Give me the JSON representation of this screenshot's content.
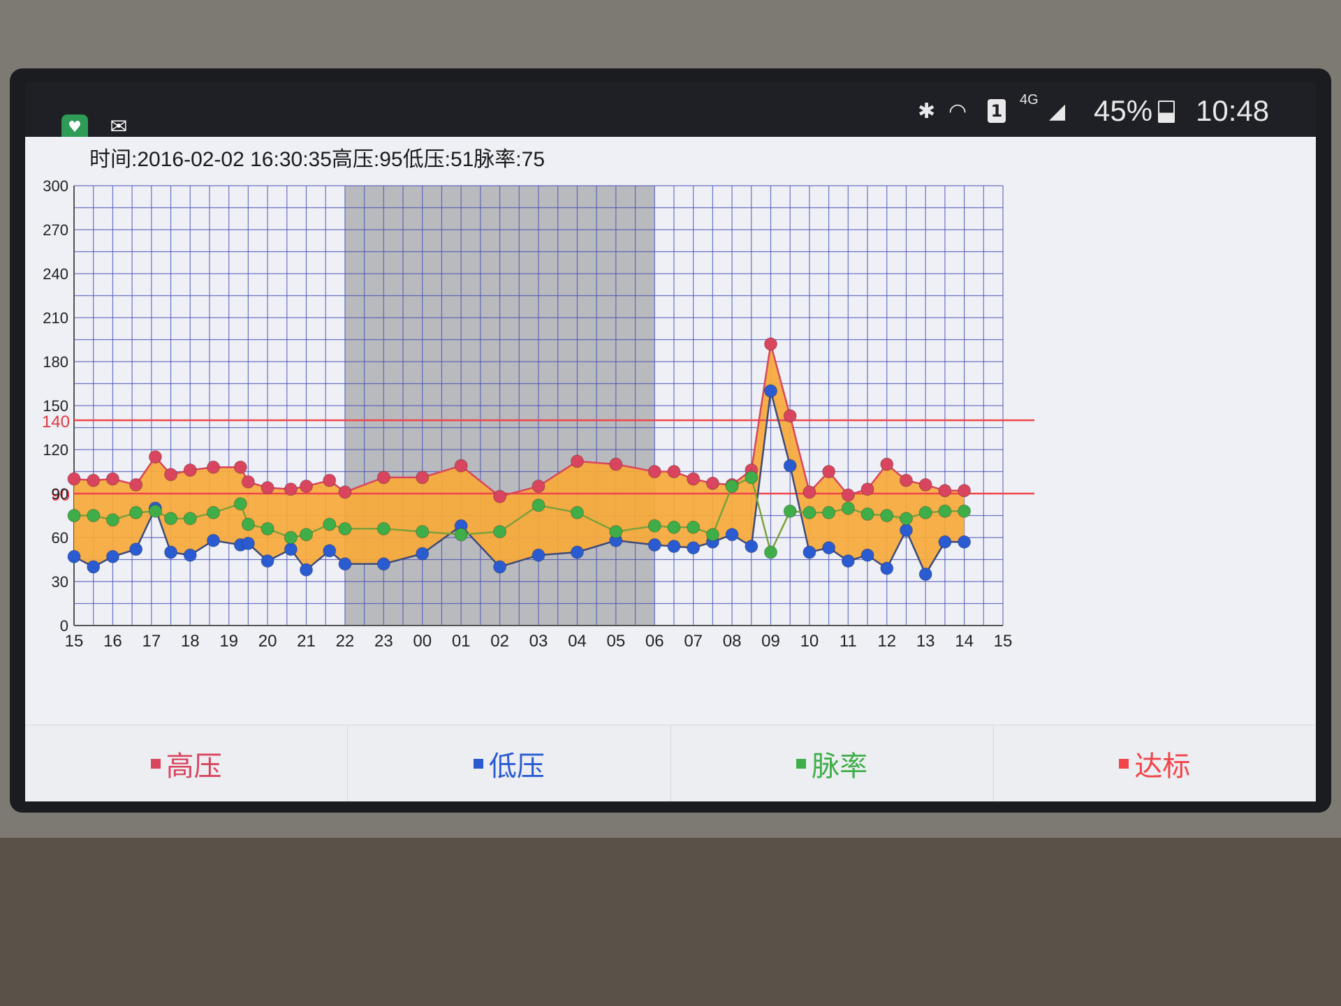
{
  "statusbar": {
    "battery": "45%",
    "time": "10:48",
    "network": "4G",
    "sim": "1",
    "icons": [
      "bluetooth-icon",
      "wifi-icon",
      "sim-icon",
      "signal-icon",
      "battery-icon"
    ],
    "app_icons": [
      "heart-monitor-icon",
      "mail-icon"
    ]
  },
  "chart": {
    "readout": "时间:2016-02-02 16:30:35高压:95低压:51脉率:75"
  },
  "legend": [
    {
      "label": "高压",
      "color": "#d9455e"
    },
    {
      "label": "低压",
      "color": "#2a5bd1"
    },
    {
      "label": "脉率",
      "color": "#3fae49"
    },
    {
      "label": "达标",
      "color": "#f0454a"
    }
  ],
  "chart_data": {
    "type": "line",
    "ylim": [
      0,
      300
    ],
    "yticks": [
      "0",
      "30",
      "60",
      "90",
      "120",
      "150",
      "180",
      "210",
      "240",
      "270",
      "300"
    ],
    "xlim": [
      15,
      39
    ],
    "xticks": [
      "15",
      "16",
      "17",
      "18",
      "19",
      "20",
      "21",
      "22",
      "23",
      "00",
      "01",
      "02",
      "03",
      "04",
      "05",
      "06",
      "07",
      "08",
      "09",
      "10",
      "11",
      "12",
      "13",
      "14",
      "15"
    ],
    "reference_lines": [
      {
        "label": "140",
        "value": 140
      },
      {
        "label": "90",
        "value": 90
      }
    ],
    "shaded_x_range": [
      22,
      30
    ],
    "grid": true,
    "series": [
      {
        "name": "高压",
        "x": [
          15.0,
          15.5,
          16.0,
          16.6,
          17.1,
          17.5,
          18.0,
          18.6,
          19.3,
          19.5,
          20.0,
          20.6,
          21.0,
          21.6,
          22.0,
          23.0,
          24.0,
          25.0,
          26.0,
          27.0,
          28.0,
          29.0,
          30.0,
          30.5,
          31.0,
          31.5,
          32.0,
          32.5,
          33.0,
          33.5,
          34.0,
          34.5,
          35.0,
          35.5,
          36.0,
          36.5,
          37.0,
          37.5,
          38.0
        ],
        "values": [
          100,
          99,
          100,
          96,
          115,
          103,
          106,
          108,
          108,
          98,
          94,
          93,
          95,
          99,
          91,
          101,
          101,
          109,
          88,
          95,
          112,
          110,
          105,
          105,
          100,
          97,
          96,
          106,
          192,
          143,
          91,
          105,
          89,
          93,
          110,
          99,
          96,
          92,
          92
        ]
      },
      {
        "name": "低压",
        "x": [
          15.0,
          15.5,
          16.0,
          16.6,
          17.1,
          17.5,
          18.0,
          18.6,
          19.3,
          19.5,
          20.0,
          20.6,
          21.0,
          21.6,
          22.0,
          23.0,
          24.0,
          25.0,
          26.0,
          27.0,
          28.0,
          29.0,
          30.0,
          30.5,
          31.0,
          31.5,
          32.0,
          32.5,
          33.0,
          33.5,
          34.0,
          34.5,
          35.0,
          35.5,
          36.0,
          36.5,
          37.0,
          37.5,
          38.0
        ],
        "values": [
          47,
          40,
          47,
          52,
          80,
          50,
          48,
          58,
          55,
          56,
          44,
          52,
          38,
          51,
          42,
          42,
          49,
          68,
          40,
          48,
          50,
          58,
          55,
          54,
          53,
          57,
          62,
          54,
          160,
          109,
          50,
          53,
          44,
          48,
          39,
          65,
          35,
          57,
          57
        ]
      },
      {
        "name": "脉率",
        "x": [
          15.0,
          15.5,
          16.0,
          16.6,
          17.1,
          17.5,
          18.0,
          18.6,
          19.3,
          19.5,
          20.0,
          20.6,
          21.0,
          21.6,
          22.0,
          23.0,
          24.0,
          25.0,
          26.0,
          27.0,
          28.0,
          29.0,
          30.0,
          30.5,
          31.0,
          31.5,
          32.0,
          32.5,
          33.0,
          33.5,
          34.0,
          34.5,
          35.0,
          35.5,
          36.0,
          36.5,
          37.0,
          37.5,
          38.0
        ],
        "values": [
          75,
          75,
          72,
          77,
          78,
          73,
          73,
          77,
          83,
          69,
          66,
          60,
          62,
          69,
          66,
          66,
          64,
          62,
          64,
          82,
          77,
          64,
          68,
          67,
          67,
          62,
          95,
          101,
          50,
          78,
          77,
          77,
          80,
          76,
          75,
          73,
          77,
          78,
          78
        ]
      }
    ]
  }
}
